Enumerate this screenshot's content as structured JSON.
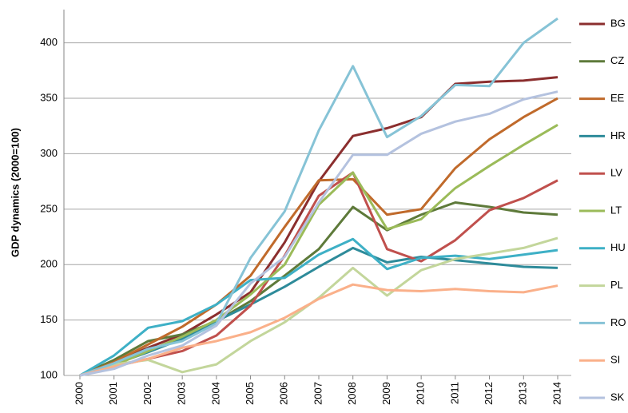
{
  "chart_data": {
    "type": "line",
    "y_label": "GDP dynamics (2000=100)",
    "categories": [
      "2000",
      "2001",
      "2002",
      "2003",
      "2004",
      "2005",
      "2006",
      "2007",
      "2008",
      "2009",
      "2010",
      "2011",
      "2012",
      "2013",
      "2014"
    ],
    "ylim": [
      100,
      430
    ],
    "yticks": [
      100,
      150,
      200,
      250,
      300,
      350,
      400
    ],
    "grid": true,
    "legend": "right",
    "series": [
      {
        "name": "BG",
        "color": "#8b2e2e",
        "values": [
          100,
          112,
          125,
          137,
          155,
          175,
          220,
          275,
          316,
          323,
          333,
          363,
          365,
          366,
          369
        ]
      },
      {
        "name": "CZ",
        "color": "#5e7a3a",
        "values": [
          100,
          114,
          131,
          137,
          149,
          167,
          190,
          214,
          252,
          231,
          245,
          256,
          252,
          247,
          245
        ]
      },
      {
        "name": "EE",
        "color": "#c06a2b",
        "values": [
          100,
          112,
          128,
          144,
          164,
          190,
          234,
          276,
          277,
          245,
          250,
          287,
          313,
          333,
          350
        ]
      },
      {
        "name": "HR",
        "color": "#2e8b9a",
        "values": [
          100,
          110,
          121,
          133,
          149,
          164,
          180,
          198,
          215,
          202,
          207,
          204,
          201,
          198,
          197
        ]
      },
      {
        "name": "LV",
        "color": "#c0504d",
        "values": [
          100,
          108,
          115,
          122,
          136,
          163,
          208,
          262,
          283,
          214,
          203,
          222,
          249,
          260,
          276
        ]
      },
      {
        "name": "LT",
        "color": "#9bbb59",
        "values": [
          100,
          109,
          122,
          135,
          150,
          173,
          200,
          254,
          283,
          232,
          241,
          269,
          289,
          308,
          326
        ]
      },
      {
        "name": "HU",
        "color": "#3eb0c6",
        "values": [
          100,
          118,
          143,
          149,
          164,
          186,
          188,
          209,
          223,
          196,
          206,
          208,
          205,
          209,
          213
        ]
      },
      {
        "name": "PL",
        "color": "#c3d69b",
        "values": [
          100,
          110,
          114,
          103,
          110,
          131,
          148,
          170,
          197,
          172,
          195,
          205,
          210,
          215,
          224
        ]
      },
      {
        "name": "RO",
        "color": "#86c3d6",
        "values": [
          100,
          111,
          124,
          131,
          147,
          206,
          248,
          321,
          379,
          315,
          334,
          362,
          361,
          400,
          422
        ]
      },
      {
        "name": "SI",
        "color": "#fab08a",
        "values": [
          100,
          108,
          115,
          125,
          131,
          139,
          152,
          169,
          182,
          177,
          176,
          178,
          176,
          175,
          181
        ]
      },
      {
        "name": "SK",
        "color": "#b4c2df",
        "values": [
          100,
          106,
          118,
          127,
          145,
          183,
          207,
          256,
          299,
          299,
          318,
          329,
          336,
          349,
          356
        ]
      }
    ]
  }
}
